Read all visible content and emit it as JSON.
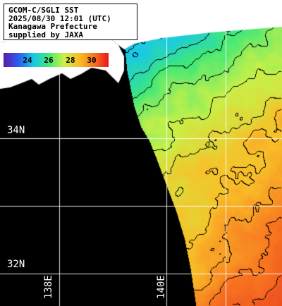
{
  "header": {
    "line1": "GCOM-C/SGLI SST",
    "line2": "2025/08/30 12:01 (UTC)",
    "line3": "Kanagawa Prefecture",
    "line4": "supplied by JAXA"
  },
  "colorbar": {
    "ticks": [
      "24",
      "26",
      "28",
      "30"
    ],
    "colors": [
      "#5a1ca8",
      "#2a5cf0",
      "#18c8e8",
      "#40e878",
      "#c8f048",
      "#f8c028",
      "#f87820",
      "#e81818"
    ]
  },
  "grid": {
    "lat_labels": [
      "34N",
      "32N"
    ],
    "lon_labels": [
      "138E",
      "140E"
    ]
  },
  "colors": {
    "land": "#ffffff",
    "no_data": "#000000",
    "grid_line": "#ffffff",
    "contour": "#000000"
  }
}
